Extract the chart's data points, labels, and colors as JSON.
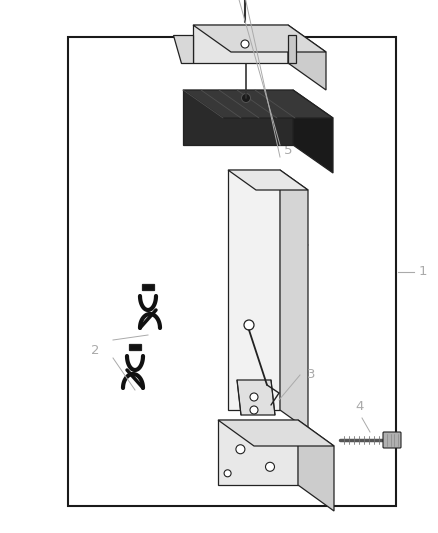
{
  "background_color": "#ffffff",
  "border_color": "#1a1a1a",
  "label_color": "#aaaaaa",
  "line_color": "#222222",
  "face_light": "#f5f5f5",
  "face_mid": "#e0e0e0",
  "face_dark": "#c8c8c8",
  "face_black": "#1a1a1a",
  "border": [
    0.155,
    0.07,
    0.75,
    0.88
  ]
}
